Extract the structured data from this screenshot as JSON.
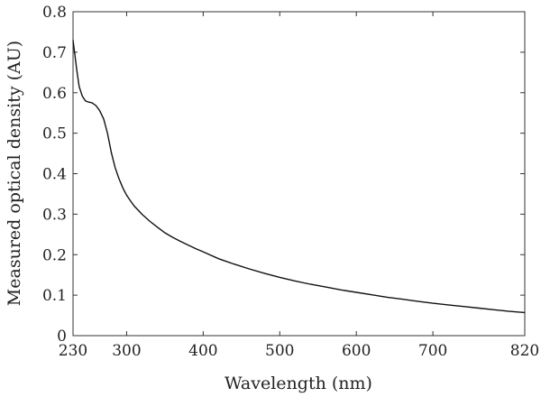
{
  "chart_data": {
    "type": "line",
    "xlabel": "Wavelength (nm)",
    "ylabel": "Measured optical density (AU)",
    "xlim": [
      230,
      820
    ],
    "ylim": [
      0,
      0.8
    ],
    "x_ticks": [
      "230",
      "300",
      "400",
      "500",
      "600",
      "700",
      "820"
    ],
    "y_ticks": [
      "0",
      "0.1",
      "0.2",
      "0.3",
      "0.4",
      "0.5",
      "0.6",
      "0.7",
      "0.8"
    ],
    "grid": false,
    "line_color": "#111111",
    "series": [
      {
        "x": [
          230,
          232,
          235,
          238,
          242,
          246,
          250,
          255,
          260,
          265,
          270,
          275,
          280,
          285,
          290,
          295,
          300,
          305,
          310,
          320,
          330,
          340,
          350,
          360,
          370,
          380,
          390,
          400,
          420,
          440,
          460,
          480,
          500,
          520,
          540,
          560,
          580,
          600,
          620,
          640,
          660,
          680,
          700,
          720,
          740,
          760,
          780,
          800,
          820
        ],
        "y": [
          0.73,
          0.7,
          0.655,
          0.615,
          0.592,
          0.58,
          0.577,
          0.575,
          0.568,
          0.555,
          0.535,
          0.5,
          0.452,
          0.415,
          0.388,
          0.365,
          0.347,
          0.333,
          0.32,
          0.3,
          0.283,
          0.268,
          0.254,
          0.243,
          0.233,
          0.224,
          0.215,
          0.207,
          0.19,
          0.177,
          0.165,
          0.154,
          0.144,
          0.135,
          0.127,
          0.12,
          0.113,
          0.107,
          0.101,
          0.095,
          0.09,
          0.085,
          0.08,
          0.076,
          0.072,
          0.068,
          0.064,
          0.06,
          0.057
        ]
      }
    ]
  }
}
